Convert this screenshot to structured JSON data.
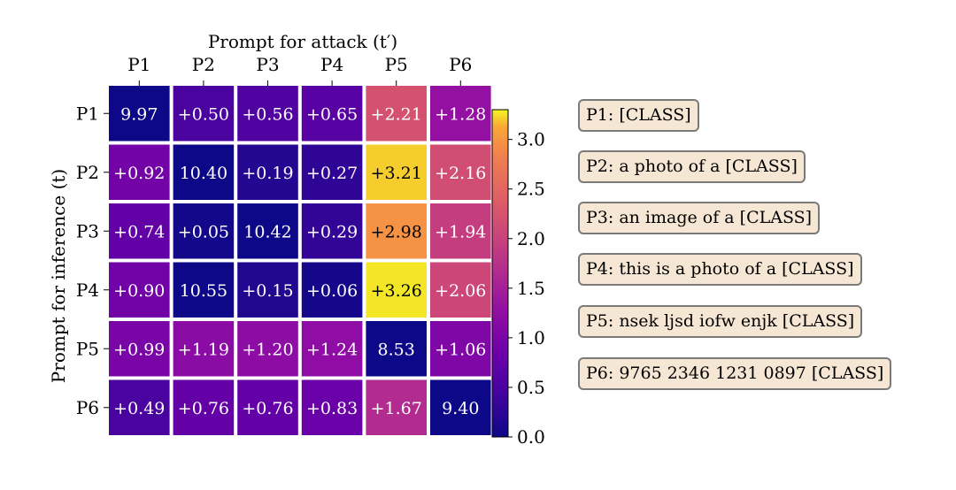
{
  "chart_data": {
    "type": "heatmap",
    "title": "Prompt for attack (t′)",
    "xlabel": "Prompt for attack (t′)",
    "ylabel": "Prompt for inference (t)",
    "columns": [
      "P1",
      "P2",
      "P3",
      "P4",
      "P5",
      "P6"
    ],
    "rows": [
      "P1",
      "P2",
      "P3",
      "P4",
      "P5",
      "P6"
    ],
    "values": [
      [
        0.0,
        0.5,
        0.56,
        0.65,
        2.21,
        1.28
      ],
      [
        0.92,
        0.0,
        0.19,
        0.27,
        3.21,
        2.16
      ],
      [
        0.74,
        0.05,
        0.0,
        0.29,
        2.98,
        1.94
      ],
      [
        0.9,
        0.0,
        0.15,
        0.06,
        3.26,
        2.06
      ],
      [
        0.99,
        1.19,
        1.2,
        1.24,
        0.0,
        1.06
      ],
      [
        0.49,
        0.76,
        0.76,
        0.83,
        1.67,
        0.0
      ]
    ],
    "labels": [
      [
        "9.97",
        "+0.50",
        "+0.56",
        "+0.65",
        "+2.21",
        "+1.28"
      ],
      [
        "+0.92",
        "10.40",
        "+0.19",
        "+0.27",
        "+3.21",
        "+2.16"
      ],
      [
        "+0.74",
        "+0.05",
        "10.42",
        "+0.29",
        "+2.98",
        "+1.94"
      ],
      [
        "+0.90",
        "10.55",
        "+0.15",
        "+0.06",
        "+3.26",
        "+2.06"
      ],
      [
        "+0.99",
        "+1.19",
        "+1.20",
        "+1.24",
        "8.53",
        "+1.06"
      ],
      [
        "+0.49",
        "+0.76",
        "+0.76",
        "+0.83",
        "+1.67",
        "9.40"
      ]
    ],
    "colorbar": {
      "range": [
        0.0,
        3.3
      ],
      "ticks": [
        "0.0",
        "0.5",
        "1.0",
        "1.5",
        "2.0",
        "2.5",
        "3.0"
      ],
      "colormap": "plasma"
    }
  },
  "legend": [
    {
      "text": "P1: [CLASS]"
    },
    {
      "text": "P2: a photo of a [CLASS]"
    },
    {
      "text": "P3: an image of a [CLASS]"
    },
    {
      "text": "P4: this is a photo of a [CLASS]"
    },
    {
      "text": "P5: nsek ljsd iofw enjk [CLASS]"
    },
    {
      "text": "P6: 9765 2346 1231 0897 [CLASS]"
    }
  ]
}
